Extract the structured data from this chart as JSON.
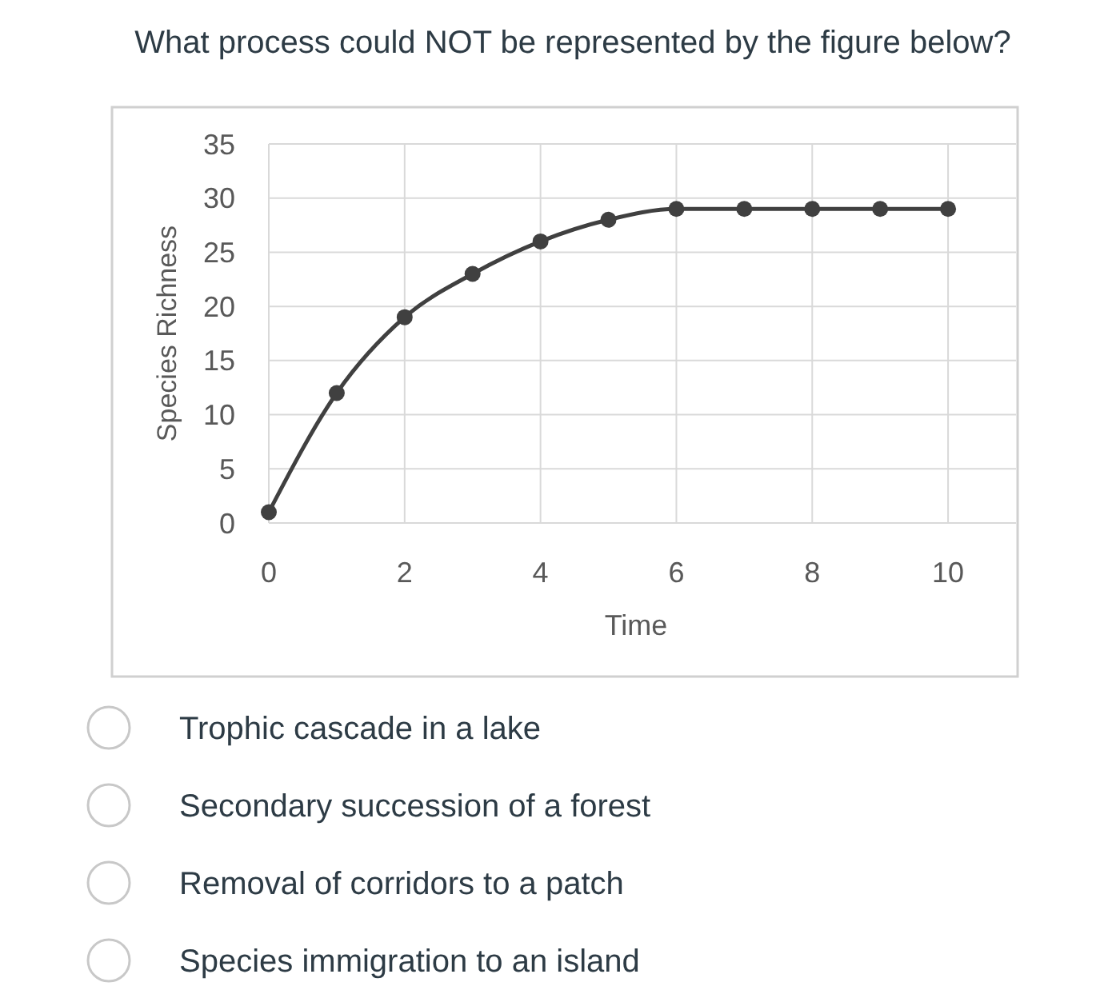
{
  "chart_data": {
    "type": "line",
    "title": "What process could NOT be represented by the figure below?",
    "xlabel": "Time",
    "ylabel": "Species Richness",
    "x": [
      0,
      1,
      2,
      3,
      4,
      5,
      6,
      7,
      8,
      9,
      10
    ],
    "series": [
      {
        "color": "#404040",
        "values": [
          1,
          12,
          19,
          23,
          26,
          28,
          29,
          29,
          29,
          29,
          29
        ]
      }
    ],
    "xlim": [
      0,
      11
    ],
    "xticks": [
      0,
      2,
      4,
      6,
      8,
      10
    ],
    "ylim": [
      0,
      35
    ],
    "yticks": [
      0,
      5,
      10,
      15,
      20,
      25,
      30,
      35
    ],
    "grid": true,
    "marker": "circle",
    "line_style": "solid",
    "annotations": [
      "Trophic cascade in a lake",
      "Secondary succession of a forest",
      "Removal of corridors to a patch",
      "Species immigration to an island"
    ]
  }
}
